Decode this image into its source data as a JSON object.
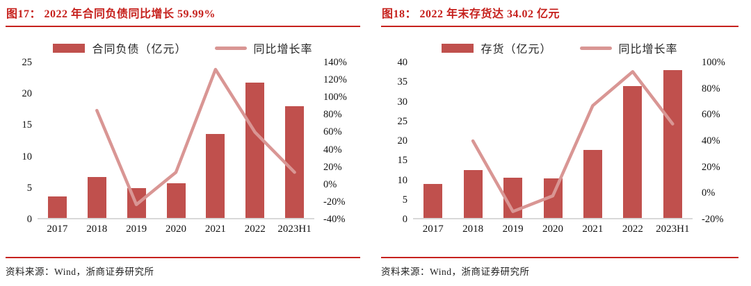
{
  "colors": {
    "bar": "#c0504d",
    "line": "#d99694",
    "accent_red": "#c6211d",
    "axis_line": "#d9d9d9",
    "text": "#1a1a1a"
  },
  "chart_data": [
    {
      "type": "bar",
      "title": "图17： 2022 年合同负债同比增长 59.99%",
      "categories": [
        "2017",
        "2018",
        "2019",
        "2020",
        "2021",
        "2022",
        "2023H1"
      ],
      "series": [
        {
          "name": "合同负债（亿元）",
          "type": "bar",
          "axis": "left",
          "values": [
            3.7,
            6.7,
            5.0,
            5.8,
            13.6,
            21.8,
            18.0
          ]
        },
        {
          "name": "同比增长率",
          "type": "line",
          "axis": "right",
          "values": [
            null,
            85,
            -23,
            14,
            132,
            60,
            14
          ]
        }
      ],
      "left_axis": {
        "min": 0,
        "max": 25,
        "step": 5,
        "ticks": [
          0,
          5,
          10,
          15,
          20,
          25
        ]
      },
      "right_axis": {
        "min": -40,
        "max": 140,
        "step": 20,
        "suffix": "%",
        "ticks": [
          -40,
          -20,
          0,
          20,
          40,
          60,
          80,
          100,
          120,
          140
        ]
      },
      "grid": false,
      "legend_position": "top",
      "source": "资料来源：Wind，浙商证券研究所"
    },
    {
      "type": "bar",
      "title": "图18： 2022 年末存货达 34.02 亿元",
      "categories": [
        "2017",
        "2018",
        "2019",
        "2020",
        "2021",
        "2022",
        "2023H1"
      ],
      "series": [
        {
          "name": "存货（亿元）",
          "type": "bar",
          "axis": "left",
          "values": [
            9.0,
            12.5,
            10.7,
            10.5,
            17.7,
            34.02,
            38.0
          ]
        },
        {
          "name": "同比增长率",
          "type": "line",
          "axis": "right",
          "values": [
            null,
            40,
            -14,
            -2,
            67,
            93,
            53
          ]
        }
      ],
      "left_axis": {
        "min": 0,
        "max": 40,
        "step": 5,
        "ticks": [
          0,
          5,
          10,
          15,
          20,
          25,
          30,
          35,
          40
        ]
      },
      "right_axis": {
        "min": -20,
        "max": 100,
        "step": 20,
        "suffix": "%",
        "ticks": [
          -20,
          0,
          20,
          40,
          60,
          80,
          100
        ]
      },
      "grid": false,
      "legend_position": "top",
      "source": "资料来源：Wind，浙商证券研究所"
    }
  ]
}
